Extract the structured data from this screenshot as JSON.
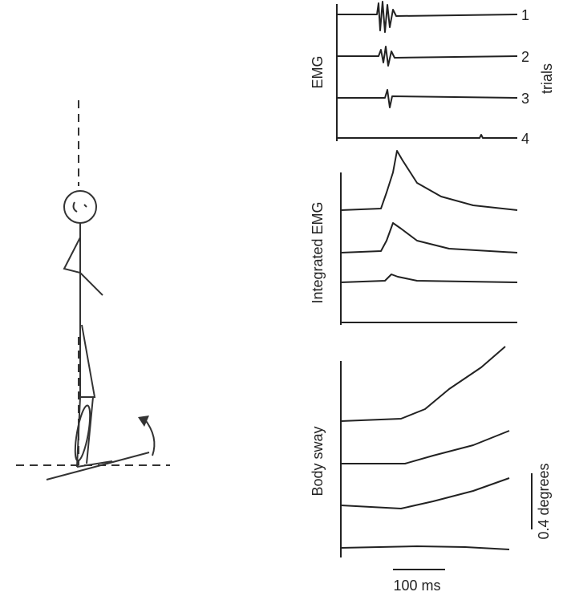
{
  "panels": [
    {
      "label": "EMG"
    },
    {
      "label": "Integrated EMG"
    },
    {
      "label": "Body sway"
    }
  ],
  "trials": {
    "title": "trials",
    "labels": [
      "1",
      "2",
      "3",
      "4"
    ]
  },
  "scale_bars": {
    "amplitude": "0.4 degrees",
    "time": "100 ms"
  }
}
